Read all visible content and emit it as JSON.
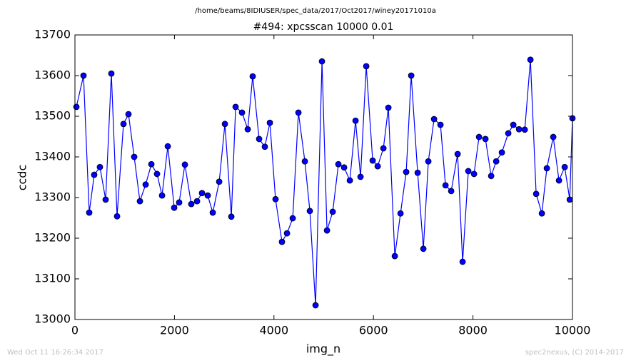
{
  "chart_data": {
    "type": "line",
    "suptitle": "/home/beams/8IDIUSER/spec_data/2017/Oct2017/winey20171010a",
    "title": "#494: xpcsscan 10000 0.01",
    "xlabel": "img_n",
    "ylabel": "ccdc",
    "color": "#0000ff",
    "x": [
      29,
      172,
      287,
      387,
      502,
      617,
      732,
      847,
      976,
      1076,
      1191,
      1306,
      1421,
      1536,
      1650,
      1751,
      1866,
      1995,
      2095,
      2210,
      2339,
      2454,
      2554,
      2669,
      2770,
      2899,
      3014,
      3143,
      3229,
      3358,
      3473,
      3573,
      3702,
      3817,
      3918,
      4032,
      4161,
      4262,
      4377,
      4492,
      4621,
      4721,
      4836,
      4965,
      5066,
      5181,
      5295,
      5410,
      5525,
      5640,
      5740,
      5855,
      5984,
      6085,
      6200,
      6300,
      6429,
      6544,
      6658,
      6759,
      6888,
      7003,
      7103,
      7218,
      7347,
      7448,
      7562,
      7692,
      7792,
      7907,
      8022,
      8122,
      8251,
      8366,
      8467,
      8581,
      8710,
      8811,
      8926,
      9041,
      9155,
      9270,
      9385,
      9485,
      9614,
      9729,
      9844,
      9945,
      10000
    ],
    "values": [
      13523,
      13600,
      13263,
      13356,
      13375,
      13295,
      13605,
      13254,
      13481,
      13505,
      13400,
      13291,
      13332,
      13382,
      13358,
      13305,
      13426,
      13275,
      13288,
      13381,
      13284,
      13291,
      13311,
      13305,
      13263,
      13339,
      13481,
      13253,
      13523,
      13509,
      13468,
      13598,
      13444,
      13425,
      13484,
      13296,
      13191,
      13212,
      13249,
      13509,
      13389,
      13267,
      13035,
      13635,
      13219,
      13265,
      13382,
      13374,
      13342,
      13489,
      13351,
      13623,
      13391,
      13377,
      13421,
      13521,
      13156,
      13261,
      13363,
      13600,
      13361,
      13174,
      13389,
      13493,
      13479,
      13330,
      13316,
      13407,
      13142,
      13365,
      13358,
      13449,
      13444,
      13353,
      13389,
      13411,
      13458,
      13479,
      13468,
      13467,
      13639,
      13309,
      13261,
      13372,
      13449,
      13342,
      13375,
      13295,
      13495
    ],
    "xlim": [
      0,
      10000
    ],
    "xticks": [
      0,
      2000,
      4000,
      6000,
      8000,
      10000
    ],
    "ylim": [
      13000,
      13700
    ],
    "yticks": [
      13000,
      13100,
      13200,
      13300,
      13400,
      13500,
      13600,
      13700
    ]
  },
  "footer": {
    "left": "Wed Oct 11 16:26:34 2017",
    "right": "spec2nexus, (C) 2014-2017"
  }
}
